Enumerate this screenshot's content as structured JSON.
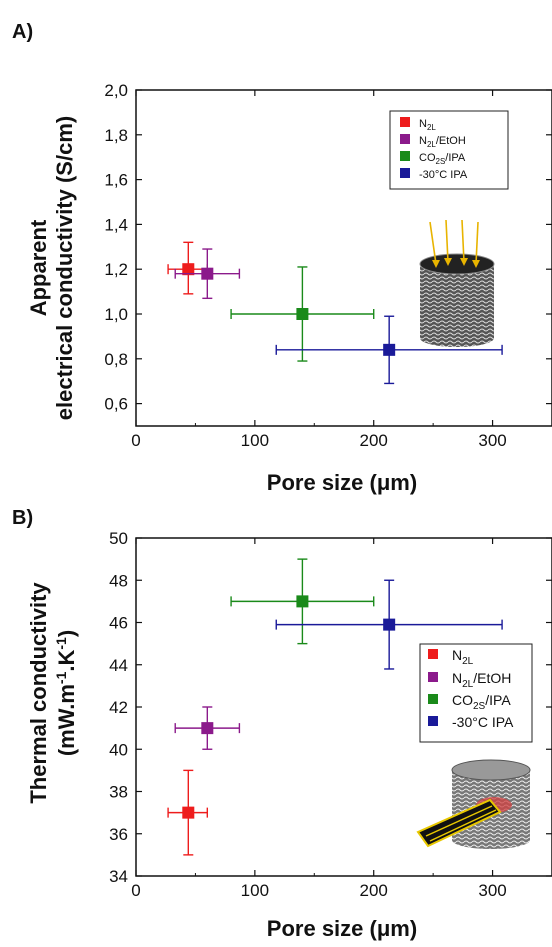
{
  "figure": {
    "panels": [
      {
        "label": "A)",
        "xlabel": "Pore size (μm)",
        "ylabel_lines": [
          "Apparent",
          "electrical conductivity (S/cm)"
        ],
        "legend": [
          "N2L",
          "N2L/EtOH",
          "CO2S/IPA",
          "-30°C IPA"
        ],
        "inset": "cylinder-with-electrical-probe-icon"
      },
      {
        "label": "B)",
        "xlabel": "Pore size (μm)",
        "ylabel_lines": [
          "Thermal conductivity",
          "(mW.m-1.K-1)"
        ],
        "legend": [
          "N2L",
          "N2L/EtOH",
          "CO2S/IPA",
          "-30°C IPA"
        ],
        "inset": "cylinder-with-thermal-sensor-icon"
      }
    ]
  },
  "chart_data": [
    {
      "type": "scatter",
      "xlabel": "Pore size (μm)",
      "ylabel": "Apparent electrical conductivity (S/cm)",
      "xlim": [
        0,
        350
      ],
      "ylim": [
        0.5,
        2.0
      ],
      "xticks": [
        "0",
        "100",
        "200",
        "300"
      ],
      "yticks": [
        "0,6",
        "0,8",
        "1,0",
        "1,2",
        "1,4",
        "1,6",
        "1,8",
        "2,0"
      ],
      "legend_position": "top-right",
      "series": [
        {
          "name": "N2L",
          "color": "#ee1c1c",
          "x": 44,
          "y": 1.2,
          "xerr": [
            27,
            60
          ],
          "yerr": [
            1.09,
            1.32
          ]
        },
        {
          "name": "N2L/EtOH",
          "color": "#8b1a8b",
          "x": 60,
          "y": 1.18,
          "xerr": [
            33,
            87
          ],
          "yerr": [
            1.07,
            1.29
          ]
        },
        {
          "name": "CO2S/IPA",
          "color": "#1a8a1a",
          "x": 140,
          "y": 1.0,
          "xerr": [
            80,
            200
          ],
          "yerr": [
            0.79,
            1.21
          ]
        },
        {
          "name": "-30°C IPA",
          "color": "#1a1a99",
          "x": 213,
          "y": 0.84,
          "xerr": [
            118,
            308
          ],
          "yerr": [
            0.69,
            0.99
          ]
        }
      ]
    },
    {
      "type": "scatter",
      "xlabel": "Pore size (μm)",
      "ylabel": "Thermal conductivity (mW.m-1.K-1)",
      "xlim": [
        0,
        350
      ],
      "ylim": [
        34,
        50
      ],
      "xticks": [
        "0",
        "100",
        "200",
        "300"
      ],
      "yticks": [
        "34",
        "36",
        "38",
        "40",
        "42",
        "44",
        "46",
        "48",
        "50"
      ],
      "legend_position": "right",
      "series": [
        {
          "name": "N2L",
          "color": "#ee1c1c",
          "x": 44,
          "y": 37.0,
          "xerr": [
            27,
            60
          ],
          "yerr": [
            35.0,
            39.0
          ]
        },
        {
          "name": "N2L/EtOH",
          "color": "#8b1a8b",
          "x": 60,
          "y": 41.0,
          "xerr": [
            33,
            87
          ],
          "yerr": [
            40.0,
            42.0
          ]
        },
        {
          "name": "CO2S/IPA",
          "color": "#1a8a1a",
          "x": 140,
          "y": 47.0,
          "xerr": [
            80,
            200
          ],
          "yerr": [
            45.0,
            49.0
          ]
        },
        {
          "name": "-30°C IPA",
          "color": "#1a1a99",
          "x": 213,
          "y": 45.9,
          "xerr": [
            118,
            308
          ],
          "yerr": [
            43.8,
            48.0
          ]
        }
      ]
    }
  ]
}
